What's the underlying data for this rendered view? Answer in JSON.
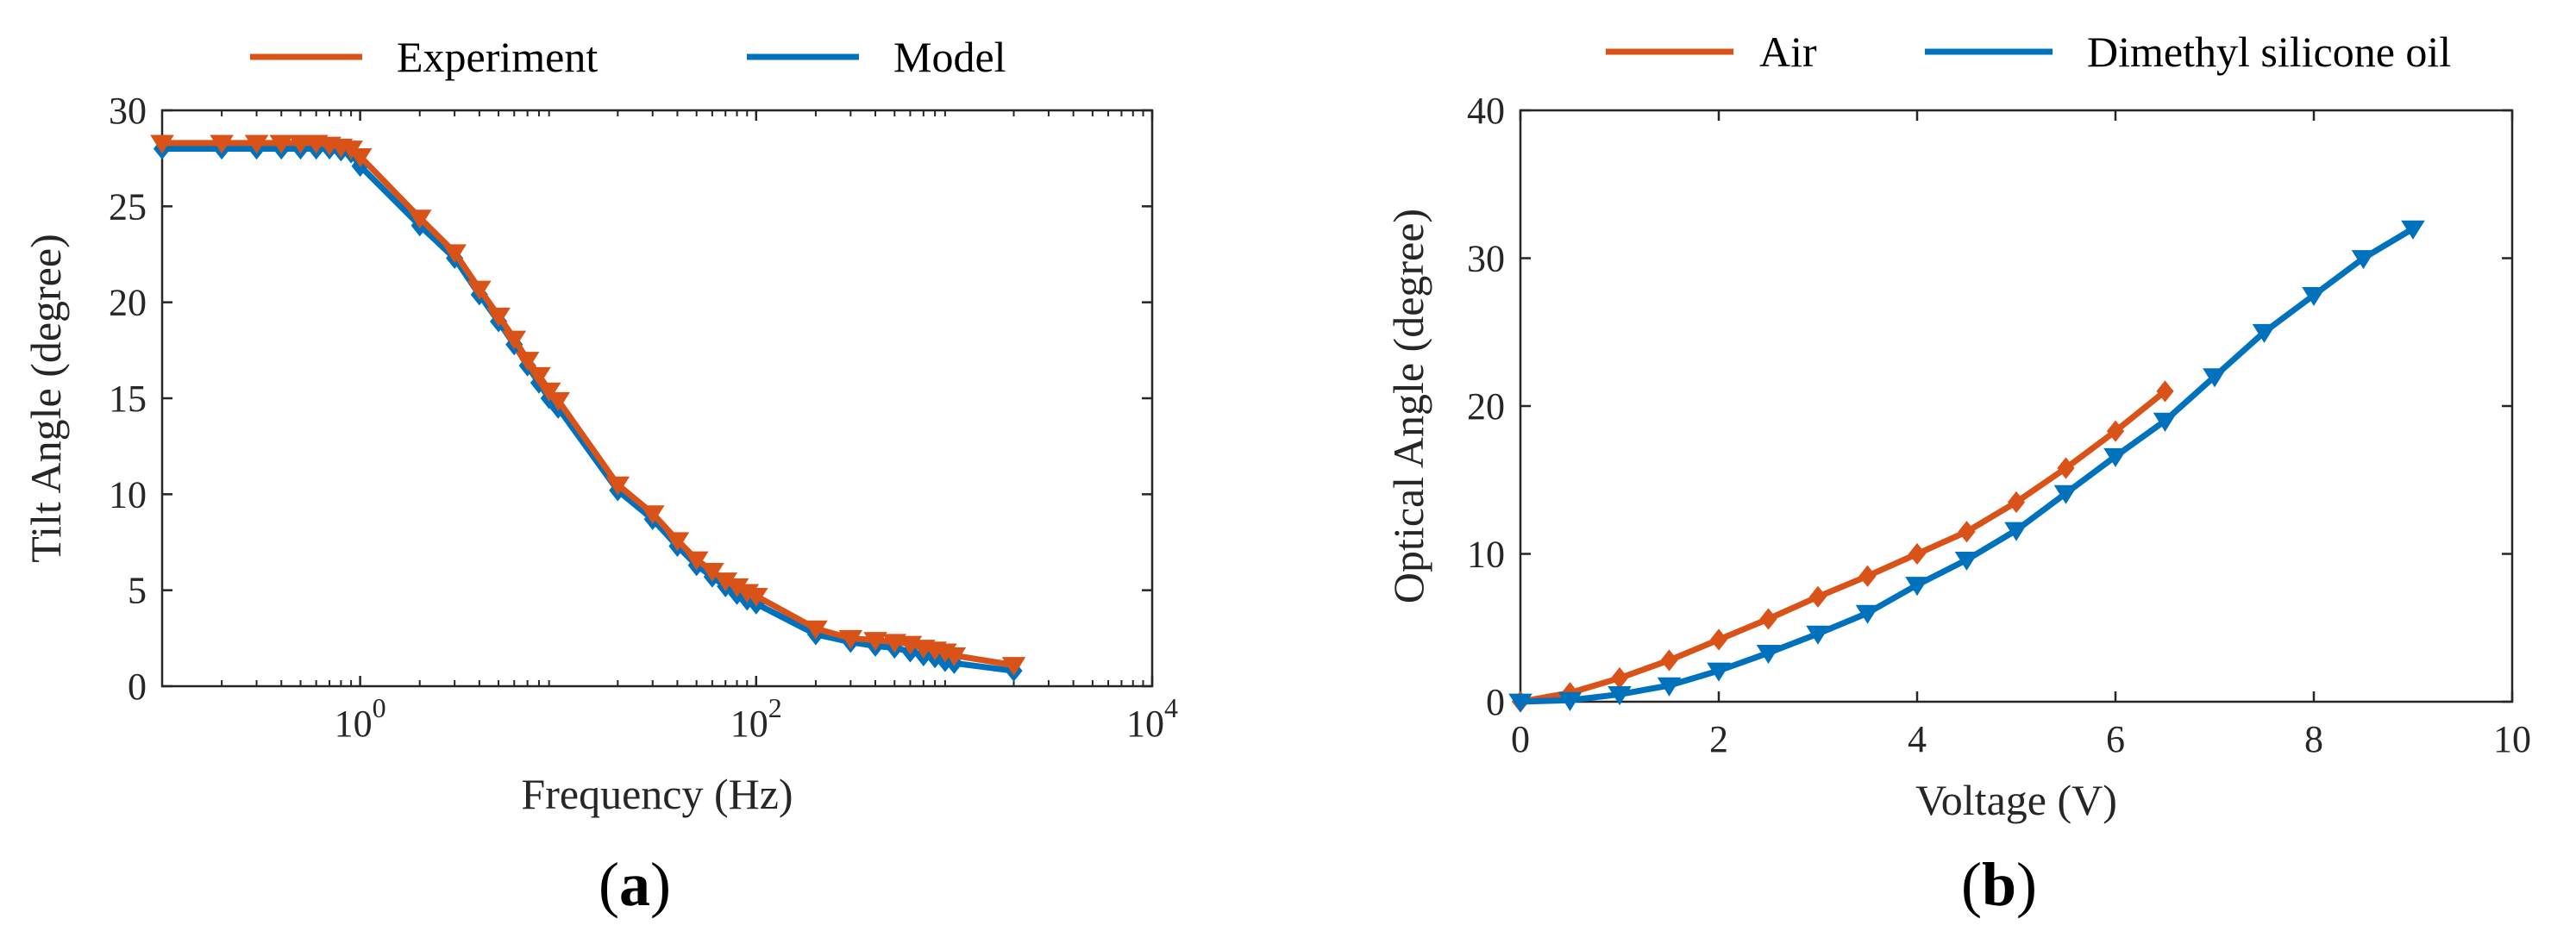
{
  "colors": {
    "orange": "#d95319",
    "blue": "#0072bd"
  },
  "panels": {
    "a": {
      "label_open": "(",
      "label_letter": "a",
      "label_close": ")"
    },
    "b": {
      "label_open": "(",
      "label_letter": "b",
      "label_close": ")"
    }
  },
  "chart_data": [
    {
      "id": "a",
      "type": "line",
      "xscale": "log",
      "xlabel": "Frequency (Hz)",
      "ylabel": "Tilt Angle (degree)",
      "xlim": [
        0.1,
        10000
      ],
      "ylim": [
        0,
        30
      ],
      "yticks": [
        0,
        5,
        10,
        15,
        20,
        25,
        30
      ],
      "xticks": [
        {
          "value": 1,
          "base": "10",
          "exp": "0"
        },
        {
          "value": 100,
          "base": "10",
          "exp": "2"
        },
        {
          "value": 10000,
          "base": "10",
          "exp": "4"
        }
      ],
      "legend": {
        "position": "top",
        "entries": [
          "Experiment",
          "Model"
        ]
      },
      "series": [
        {
          "name": "Experiment",
          "color": "orange",
          "marker": "triangle-down",
          "x": [
            0.1,
            0.2,
            0.3,
            0.4,
            0.5,
            0.6,
            0.7,
            0.8,
            0.9,
            1,
            2,
            3,
            4,
            5,
            6,
            7,
            8,
            9,
            10,
            20,
            30,
            40,
            50,
            60,
            70,
            80,
            90,
            100,
            200,
            300,
            400,
            500,
            600,
            700,
            800,
            900,
            1000,
            2000
          ],
          "y": [
            28.3,
            28.3,
            28.3,
            28.3,
            28.3,
            28.3,
            28.2,
            28.1,
            28.0,
            27.6,
            24.4,
            22.6,
            20.7,
            19.3,
            18.1,
            17.0,
            16.2,
            15.4,
            14.9,
            10.5,
            9.0,
            7.6,
            6.6,
            6.0,
            5.5,
            5.2,
            4.9,
            4.7,
            3.0,
            2.5,
            2.4,
            2.3,
            2.2,
            2.0,
            1.9,
            1.8,
            1.6,
            1.1
          ]
        },
        {
          "name": "Model",
          "color": "blue",
          "marker": "diamond",
          "x": [
            0.1,
            0.2,
            0.3,
            0.4,
            0.5,
            0.6,
            0.7,
            0.8,
            0.9,
            1,
            2,
            3,
            4,
            5,
            6,
            7,
            8,
            9,
            10,
            20,
            30,
            40,
            50,
            60,
            70,
            80,
            90,
            100,
            200,
            300,
            400,
            500,
            600,
            700,
            800,
            900,
            1000,
            2000
          ],
          "y": [
            28.0,
            28.0,
            28.0,
            28.0,
            28.0,
            28.0,
            28.0,
            27.9,
            27.8,
            27.1,
            24.0,
            22.3,
            20.4,
            19.0,
            17.8,
            16.7,
            15.8,
            15.0,
            14.5,
            10.2,
            8.7,
            7.3,
            6.3,
            5.7,
            5.2,
            4.8,
            4.5,
            4.3,
            2.7,
            2.3,
            2.1,
            2.0,
            1.8,
            1.6,
            1.5,
            1.3,
            1.2,
            0.8
          ]
        }
      ]
    },
    {
      "id": "b",
      "type": "line",
      "xscale": "linear",
      "xlabel": "Voltage (V)",
      "ylabel": "Optical Angle (degree)",
      "xlim": [
        0,
        10
      ],
      "ylim": [
        0,
        40
      ],
      "xticks": [
        0,
        2,
        4,
        6,
        8,
        10
      ],
      "yticks": [
        0,
        10,
        20,
        30,
        40
      ],
      "legend": {
        "position": "top",
        "entries": [
          "Air",
          "Dimethyl silicone oil"
        ]
      },
      "series": [
        {
          "name": "Air",
          "color": "orange",
          "marker": "diamond",
          "x": [
            0,
            0.5,
            1,
            1.5,
            2,
            2.5,
            3,
            3.5,
            4,
            4.5,
            5,
            5.5,
            6,
            6.5
          ],
          "y": [
            0,
            0.6,
            1.6,
            2.8,
            4.2,
            5.6,
            7.1,
            8.5,
            10.0,
            11.5,
            13.5,
            15.8,
            18.3,
            21.0
          ]
        },
        {
          "name": "Dimethyl silicone oil",
          "color": "blue",
          "marker": "triangle-down",
          "x": [
            0,
            0.5,
            1,
            1.5,
            2,
            2.5,
            3,
            3.5,
            4,
            4.5,
            5,
            5.5,
            6,
            6.5,
            7,
            7.5,
            8,
            8.5,
            9
          ],
          "y": [
            0,
            0.1,
            0.5,
            1.1,
            2.1,
            3.3,
            4.6,
            6.0,
            7.9,
            9.6,
            11.6,
            14.1,
            16.6,
            19.0,
            22.0,
            25.0,
            27.5,
            30.0,
            32.0
          ]
        }
      ]
    }
  ]
}
